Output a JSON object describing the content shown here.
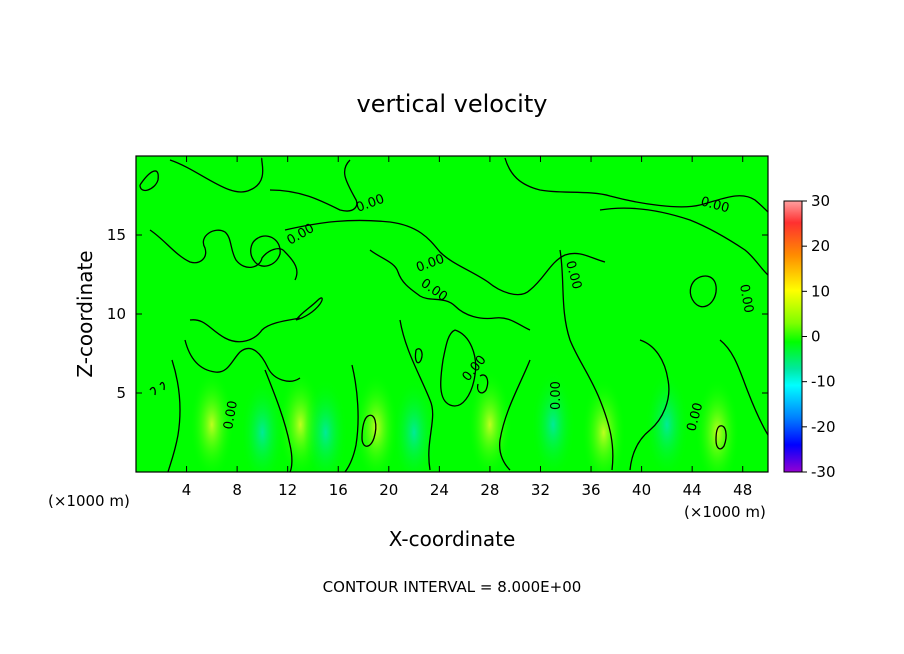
{
  "chart_data": {
    "type": "heatmap",
    "title": "vertical velocity",
    "xlabel": "X-coordinate",
    "ylabel": "Z-coordinate",
    "x_unit": "(×1000 m)",
    "y_unit": "(×1000 m)",
    "xlim": [
      0,
      50
    ],
    "ylim": [
      0,
      20
    ],
    "x_ticks": [
      4,
      8,
      12,
      16,
      20,
      24,
      28,
      32,
      36,
      40,
      44,
      48
    ],
    "y_ticks": [
      5,
      10,
      15
    ],
    "colorbar": {
      "ticks": [
        30,
        20,
        10,
        0,
        -10,
        -20,
        -30
      ],
      "range": [
        -30,
        30
      ],
      "colors": [
        "#ff9a9a",
        "#ff2a2a",
        "#ff8c00",
        "#ffff00",
        "#7fff00",
        "#00ff00",
        "#00e59a",
        "#00ffff",
        "#0080ff",
        "#0000ff",
        "#7f00ff",
        "#9400d3"
      ]
    },
    "contour_labels": [
      "0.00"
    ],
    "contour_interval_text": "CONTOUR INTERVAL = 8.000E+00",
    "background_value": 0,
    "highlights": [
      {
        "x": 6,
        "z": 3,
        "value": 5
      },
      {
        "x": 10,
        "z": 2.5,
        "value": -3
      },
      {
        "x": 13,
        "z": 3,
        "value": 5
      },
      {
        "x": 15,
        "z": 2.5,
        "value": -3
      },
      {
        "x": 19,
        "z": 2.8,
        "value": 7
      },
      {
        "x": 22,
        "z": 2.5,
        "value": -3
      },
      {
        "x": 28,
        "z": 3,
        "value": 4
      },
      {
        "x": 33,
        "z": 3,
        "value": -3
      },
      {
        "x": 37,
        "z": 2.5,
        "value": 5
      },
      {
        "x": 42,
        "z": 3,
        "value": -3
      },
      {
        "x": 46,
        "z": 2.5,
        "value": 6
      }
    ]
  }
}
